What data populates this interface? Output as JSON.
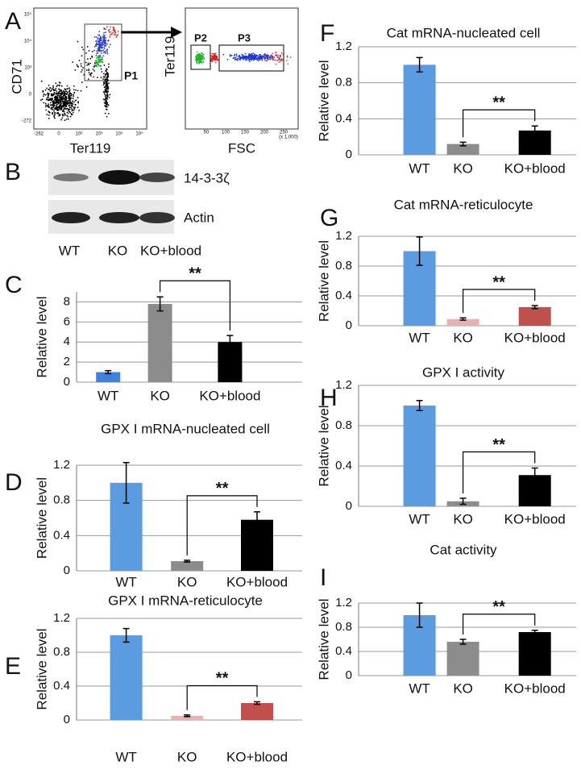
{
  "flow_panel": {
    "letter": "A",
    "left": {
      "ylabel": "CD71",
      "xlabel": "Ter119",
      "gate": "P1",
      "yticks": [
        "10⁵",
        "10⁴",
        "10³",
        "0",
        "-272"
      ],
      "xticks": [
        "-262",
        "0",
        "10²",
        "10³",
        "10⁴",
        "10⁵"
      ]
    },
    "right": {
      "ylabel": "Ter119",
      "xlabel": "FSC",
      "gates": [
        "P2",
        "P3"
      ],
      "xticks": [
        "50",
        "100",
        "150",
        "200",
        "250"
      ],
      "xunit": "(x 1,000)"
    }
  },
  "blot_panel": {
    "letter": "B",
    "rows": [
      "14-3-3ζ",
      "Actin"
    ],
    "lanes": [
      "WT",
      "KO",
      "KO+blood"
    ]
  },
  "chart_data": [
    {
      "type": "bar",
      "letter": "C",
      "ylabel": "Relative level",
      "categories": [
        "WT",
        "KO",
        "KO+blood"
      ],
      "values": [
        1.0,
        7.8,
        4.0
      ],
      "errors": [
        0.15,
        0.7,
        0.65
      ],
      "colors": [
        "#3f80e0",
        "#8c8c8c",
        "#000000"
      ],
      "ylim": [
        0,
        9
      ],
      "yticks": [
        0,
        2,
        4,
        6,
        8
      ],
      "grid": true,
      "annotation": "**"
    },
    {
      "type": "bar",
      "letter": "D",
      "title": "GPX I mRNA-nucleated cell",
      "ylabel": "Relative level",
      "categories": [
        "WT",
        "KO",
        "KO+blood"
      ],
      "values": [
        1.0,
        0.11,
        0.58
      ],
      "errors": [
        0.23,
        0.01,
        0.09
      ],
      "colors": [
        "#5b9be0",
        "#8c8c8c",
        "#000000"
      ],
      "ylim": [
        0,
        1.2
      ],
      "yticks": [
        0,
        0.4,
        0.8,
        1.2
      ],
      "grid": true,
      "annotation": "**"
    },
    {
      "type": "bar",
      "letter": "E",
      "title": "GPX I mRNA-reticulocyte",
      "ylabel": "Relative level",
      "categories": [
        "WT",
        "KO",
        "KO+blood"
      ],
      "values": [
        1.0,
        0.05,
        0.2
      ],
      "errors": [
        0.08,
        0.01,
        0.015
      ],
      "colors": [
        "#5b9be0",
        "#e6b3b1",
        "#c0504d"
      ],
      "ylim": [
        0,
        1.2
      ],
      "yticks": [
        0,
        0.4,
        0.8,
        1.2
      ],
      "grid": true,
      "annotation": "**"
    },
    {
      "type": "bar",
      "letter": "F",
      "title": "Cat mRNA-nucleated cell",
      "ylabel": "Relative level",
      "categories": [
        "WT",
        "KO",
        "KO+blood"
      ],
      "values": [
        1.0,
        0.12,
        0.27
      ],
      "errors": [
        0.08,
        0.02,
        0.05
      ],
      "colors": [
        "#5b9be0",
        "#8c8c8c",
        "#000000"
      ],
      "ylim": [
        0,
        1.2
      ],
      "yticks": [
        0,
        0.4,
        0.8,
        1.2
      ],
      "grid": true,
      "annotation": "**"
    },
    {
      "type": "bar",
      "letter": "G",
      "title": "Cat mRNA-reticulocyte",
      "ylabel": "Relative level",
      "categories": [
        "WT",
        "KO",
        "KO+blood"
      ],
      "values": [
        1.0,
        0.09,
        0.25
      ],
      "errors": [
        0.19,
        0.015,
        0.02
      ],
      "colors": [
        "#5b9be0",
        "#e6b3b1",
        "#c0504d"
      ],
      "ylim": [
        0,
        1.2
      ],
      "yticks": [
        0,
        0.4,
        0.8,
        1.2
      ],
      "grid": true,
      "annotation": "**"
    },
    {
      "type": "bar",
      "letter": "H",
      "title": "GPX I activity",
      "ylabel": "Relative level",
      "categories": [
        "WT",
        "KO",
        "KO+blood"
      ],
      "values": [
        1.0,
        0.05,
        0.31
      ],
      "errors": [
        0.05,
        0.03,
        0.07
      ],
      "colors": [
        "#5b9be0",
        "#8c8c8c",
        "#000000"
      ],
      "ylim": [
        0,
        1.2
      ],
      "yticks": [
        0,
        0.4,
        0.8,
        1.2
      ],
      "grid": true,
      "annotation": "**"
    },
    {
      "type": "bar",
      "letter": "I",
      "title": "Cat activity",
      "ylabel": "Relative level",
      "categories": [
        "WT",
        "KO",
        "KO+blood"
      ],
      "values": [
        1.0,
        0.56,
        0.72
      ],
      "errors": [
        0.2,
        0.04,
        0.03
      ],
      "colors": [
        "#5b9be0",
        "#8c8c8c",
        "#000000"
      ],
      "ylim": [
        0,
        1.2
      ],
      "yticks": [
        0,
        0.4,
        0.8,
        1.2
      ],
      "grid": true,
      "annotation": "**"
    }
  ]
}
